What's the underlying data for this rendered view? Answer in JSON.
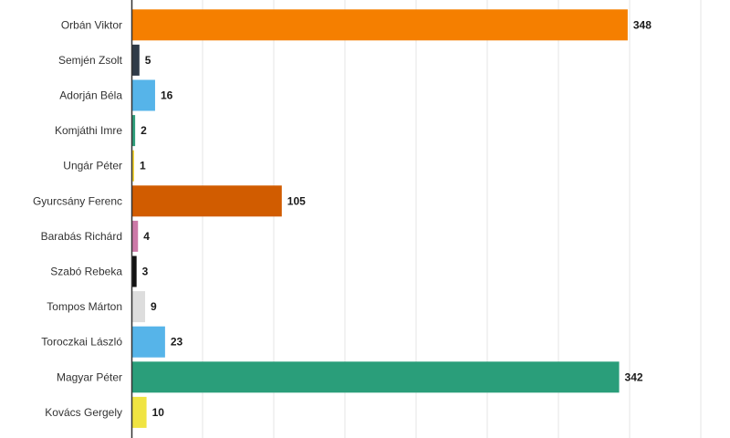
{
  "chart_data": {
    "type": "bar",
    "orientation": "horizontal",
    "title": "",
    "xlabel": "",
    "ylabel": "",
    "xlim": [
      0,
      400
    ],
    "grid": true,
    "legend": "none",
    "categories": [
      "Orbán Viktor",
      "Semjén Zsolt",
      "Adorján Béla",
      "Komjáthi Imre",
      "Ungár Péter",
      "Gyurcsány Ferenc",
      "Barabás Richárd",
      "Szabó Rebeka",
      "Tompos Márton",
      "Toroczkai László",
      "Magyar Péter",
      "Kovács Gergely"
    ],
    "values": [
      348,
      5,
      16,
      2,
      1,
      105,
      4,
      3,
      9,
      23,
      342,
      10
    ],
    "colors": [
      "#F57F00",
      "#2F3B48",
      "#56B4E9",
      "#2E9E7A",
      "#F2D43A",
      "#D15C00",
      "#CC79A7",
      "#111111",
      "#DDDDDD",
      "#56B4E9",
      "#2A9E7A",
      "#F0E442"
    ]
  }
}
